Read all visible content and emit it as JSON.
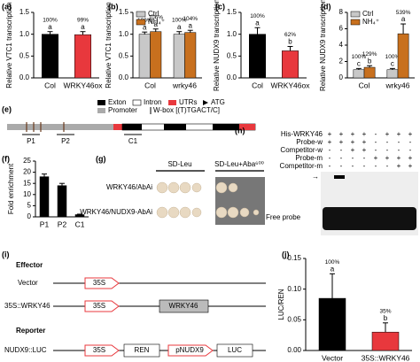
{
  "chart_data": [
    {
      "panel": "(a)",
      "type": "bar",
      "ylabel": "Relative VTC1 transcription",
      "categories": [
        "Col",
        "WRKY46ox"
      ],
      "values": [
        1.0,
        0.99
      ],
      "errors": [
        0.06,
        0.07
      ],
      "value_labels": [
        "100%",
        "99%"
      ],
      "letters": [
        "a",
        "a"
      ],
      "colors": [
        "#000000",
        "#e8383d"
      ],
      "ylim": [
        0,
        1.5
      ],
      "yticks": [
        {
          "value": 0,
          "label": "0.0"
        },
        0.5,
        {
          "value": 1,
          "label": "1.0"
        },
        1.5
      ]
    },
    {
      "panel": "(b)",
      "type": "grouped-bar",
      "ylabel": "Relative VTC1 transcription",
      "categories": [
        "Col",
        "wrky46"
      ],
      "series": [
        {
          "name": "Ctrl",
          "color": "#c8c8c8",
          "values": [
            1.0,
            1.0
          ],
          "errors": [
            0.05,
            0.06
          ],
          "value_labels": [
            "100%",
            "100%"
          ],
          "letters": [
            "a",
            "a"
          ]
        },
        {
          "name": "NH₄⁺",
          "color": "#c8701e",
          "values": [
            1.06,
            1.04
          ],
          "errors": [
            0.06,
            0.05
          ],
          "value_labels": [
            "106%",
            "104%"
          ],
          "letters": [
            "a",
            "a"
          ]
        }
      ],
      "ylim": [
        0,
        1.5
      ],
      "yticks": [
        {
          "value": 0,
          "label": "0.0"
        },
        0.5,
        {
          "value": 1,
          "label": "1.0"
        },
        1.5
      ]
    },
    {
      "panel": "(c)",
      "type": "bar",
      "ylabel": "Relative NUDX9 transcription",
      "categories": [
        "Col",
        "WRKY46ox"
      ],
      "values": [
        1.0,
        0.62
      ],
      "errors": [
        0.15,
        0.1
      ],
      "value_labels": [
        "100%",
        "62%"
      ],
      "letters": [
        "a",
        "b"
      ],
      "colors": [
        "#000000",
        "#e8383d"
      ],
      "ylim": [
        0,
        1.5
      ],
      "yticks": [
        {
          "value": 0,
          "label": "0.0"
        },
        0.5,
        {
          "value": 1,
          "label": "1.0"
        },
        1.5
      ]
    },
    {
      "panel": "(d)",
      "type": "grouped-bar",
      "ylabel": "Relative NUDX9 transcription",
      "categories": [
        "Col",
        "wrky46"
      ],
      "series": [
        {
          "name": "Ctrl",
          "color": "#c8c8c8",
          "values": [
            1.0,
            1.0
          ],
          "errors": [
            0.15,
            0.15
          ],
          "value_labels": [
            "100%",
            "100%"
          ],
          "letters": [
            "c",
            "c"
          ]
        },
        {
          "name": "NH₄⁺",
          "color": "#c8701e",
          "values": [
            1.29,
            5.39
          ],
          "errors": [
            0.2,
            1.2
          ],
          "value_labels": [
            "129%",
            "539%"
          ],
          "letters": [
            "b",
            "a"
          ]
        }
      ],
      "ylim": [
        0,
        8
      ],
      "yticks": [
        0,
        2,
        4,
        6,
        8
      ]
    },
    {
      "panel": "(f)",
      "type": "bar",
      "ylabel": "Fold enrichment",
      "categories": [
        "P1",
        "P2",
        "C1"
      ],
      "values": [
        18,
        14,
        1
      ],
      "errors": [
        1.2,
        1.0,
        0.2
      ],
      "colors": [
        "#000000",
        "#000000",
        "#000000"
      ],
      "ylim": [
        0,
        25
      ],
      "yticks": [
        0,
        5,
        10,
        15,
        20,
        25
      ]
    },
    {
      "panel": "(j)",
      "type": "bar",
      "ylabel": "LUC/REN",
      "categories": [
        "Vector",
        "35S::WRKY46"
      ],
      "values": [
        0.085,
        0.03
      ],
      "errors": [
        0.04,
        0.015
      ],
      "value_labels": [
        "100%",
        "35%"
      ],
      "letters": [
        "a",
        "b"
      ],
      "colors": [
        "#000000",
        "#e8383d"
      ],
      "ylim": [
        0,
        0.15
      ],
      "yticks": [
        {
          "value": 0,
          "label": "0.00"
        },
        0.05,
        {
          "value": 0.1,
          "label": "0.10"
        },
        0.15
      ]
    }
  ],
  "gene_diagram": {
    "panel": "(e)",
    "legend": [
      "Exton",
      "Intron",
      "UTRs",
      "ATG",
      "Promoter",
      "W-box [(T)TGACT/C]"
    ],
    "primers": [
      "P1",
      "P2",
      "C1"
    ]
  },
  "yeast": {
    "panel": "(g)",
    "columns": [
      "SD-Leu",
      "SD-Leu+Aba⁶⁰⁰"
    ],
    "rows": [
      "WRKY46/AbAi",
      "WRKY46/NUDX9-AbAi"
    ]
  },
  "emsa": {
    "panel": "(h)",
    "rows": [
      {
        "label": "His-WRKY46",
        "lanes": [
          "+",
          "+",
          "+",
          "+",
          "-",
          "+",
          "+",
          "+"
        ]
      },
      {
        "label": "Probe-w",
        "lanes": [
          "+",
          "+",
          "+",
          "+",
          "-",
          "-",
          "-",
          "-"
        ]
      },
      {
        "label": "Competitor-w",
        "lanes": [
          "-",
          "-",
          "+",
          "+",
          "-",
          "-",
          "-",
          "-"
        ]
      },
      {
        "label": "Probe-m",
        "lanes": [
          "-",
          "-",
          "-",
          "-",
          "+",
          "+",
          "+",
          "+"
        ]
      },
      {
        "label": "Competitor-m",
        "lanes": [
          "-",
          "-",
          "-",
          "-",
          "-",
          "-",
          "+",
          "+"
        ]
      }
    ],
    "free_probe": "Free probe"
  },
  "constructs": {
    "panel": "(i)",
    "effector": "Effector",
    "reporter": "Reporter",
    "vector": "Vector",
    "promoter": "35S",
    "effector_name": "35S::WRKY46",
    "gene": "WRKY46",
    "reporter_name": "NUDX9::LUC",
    "ren": "REN",
    "pnudx9": "pNUDX9",
    "luc": "LUC"
  }
}
